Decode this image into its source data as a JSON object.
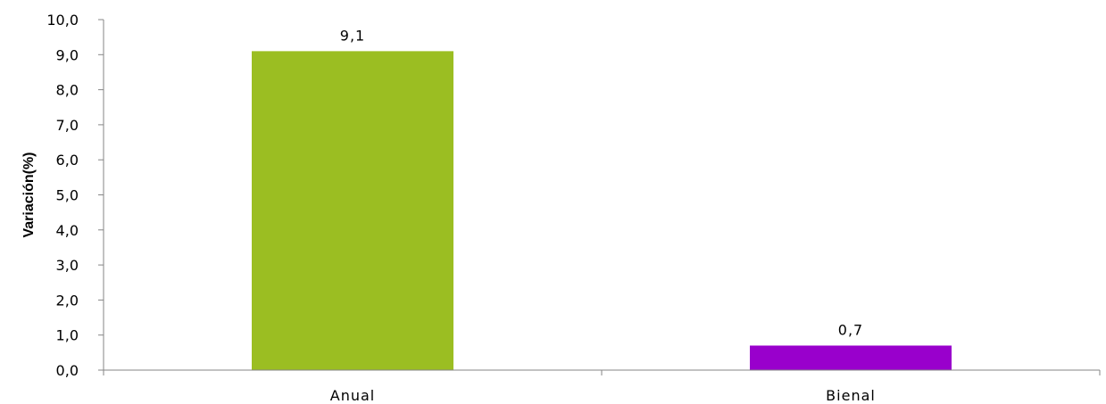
{
  "chart_data": {
    "type": "bar",
    "categories": [
      "Anual",
      "Bienal"
    ],
    "values": [
      9.1,
      0.7
    ],
    "data_labels": [
      "9,1",
      "0,7"
    ],
    "colors": [
      "#9bbe22",
      "#9900cc"
    ],
    "ylabel": "Variación(%)",
    "xlabel": "",
    "ylim": [
      0,
      10
    ],
    "yticks": [
      "0,0",
      "1,0",
      "2,0",
      "3,0",
      "4,0",
      "5,0",
      "6,0",
      "7,0",
      "8,0",
      "9,0",
      "10,0"
    ],
    "grid": false,
    "legend": "none"
  }
}
